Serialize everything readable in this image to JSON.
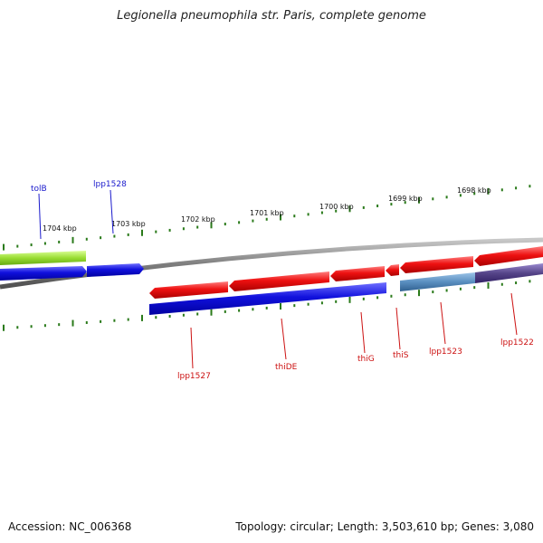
{
  "title": "Legionella pneumophila str. Paris, complete genome",
  "accession": "Accession: NC_006368",
  "summary": "Topology: circular; Length: 3,503,610 bp; Genes: 3,080",
  "ruler_labels": [
    "1704 kbp",
    "1703 kbp",
    "1702 kbp",
    "1701 kbp",
    "1700 kbp",
    "1699 kbp",
    "1698 kbp"
  ],
  "genes_top": [
    {
      "name": "tolB",
      "color": "#1a1acc"
    },
    {
      "name": "lpp1528",
      "color": "#1a1acc"
    }
  ],
  "genes_bottom": [
    {
      "name": "lpp1527",
      "color": "#cc1111"
    },
    {
      "name": "thiDE",
      "color": "#cc1111"
    },
    {
      "name": "thiG",
      "color": "#cc1111"
    },
    {
      "name": "thiS",
      "color": "#cc1111"
    },
    {
      "name": "lpp1523",
      "color": "#cc1111"
    },
    {
      "name": "lpp1522",
      "color": "#cc1111"
    }
  ],
  "colors": {
    "backbone": "#808080",
    "tick": "#2a7a1a",
    "forward_gene": "#ee1111",
    "reverse_gene": "#1111dd",
    "rna_gene": "#99dd33",
    "pseudo_gene": "#5a8fc0",
    "other_gene": "#554488"
  }
}
